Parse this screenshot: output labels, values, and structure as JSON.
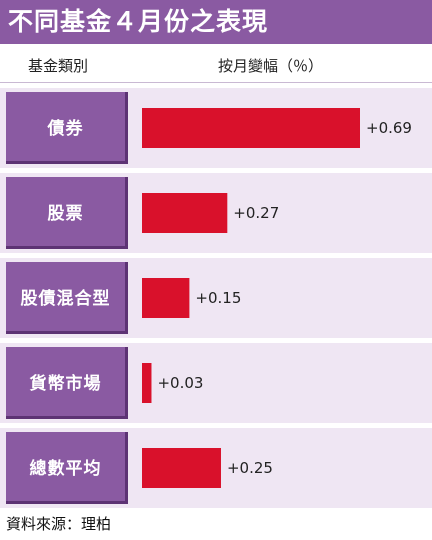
{
  "title": "不同基金４月份之表現",
  "header": {
    "category_label": "基金類別",
    "change_label": "按月變幅（％）"
  },
  "chart_data": {
    "type": "bar",
    "orientation": "horizontal",
    "categories": [
      "債券",
      "股票",
      "股債混合型",
      "貨幣市場",
      "總數平均"
    ],
    "values": [
      0.69,
      0.27,
      0.15,
      0.03,
      0.25
    ],
    "value_labels": [
      "+0.69",
      "+0.27",
      "+0.15",
      "+0.03",
      "+0.25"
    ],
    "unit": "%",
    "xlim": [
      0,
      0.69
    ],
    "bar_color": "#d9112b",
    "label_box_color": "#8a5aa2",
    "row_background": "#efe6f3"
  },
  "source": "資料來源：理柏"
}
